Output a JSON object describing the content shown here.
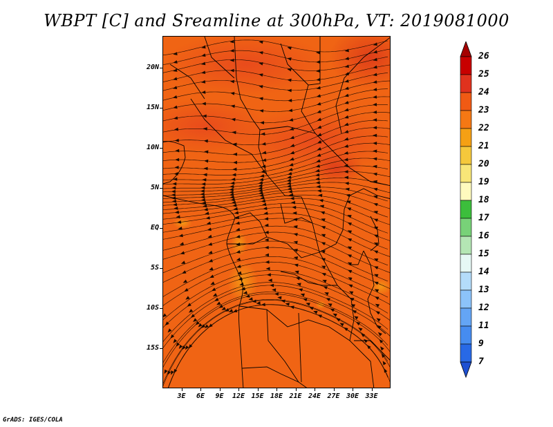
{
  "title": "WBPT [C] and Sreamline at 300hPa, VT: 2019081000",
  "footer": "GrADS: IGES/COLA",
  "map": {
    "lon_range": [
      0,
      36
    ],
    "lat_range": [
      -20,
      24
    ],
    "y_ticks": [
      "20N",
      "15N",
      "10N",
      "5N",
      "EQ",
      "5S",
      "10S",
      "15S"
    ],
    "x_ticks": [
      "3E",
      "6E",
      "9E",
      "12E",
      "15E",
      "18E",
      "21E",
      "24E",
      "27E",
      "30E",
      "33E"
    ],
    "dominant_color": "#f06414",
    "warm_color": "#e8461e",
    "cool_color": "#f59a14"
  },
  "colorbar": {
    "labels": [
      "26",
      "25",
      "24",
      "23",
      "22",
      "21",
      "20",
      "19",
      "18",
      "17",
      "16",
      "15",
      "14",
      "13",
      "12",
      "11",
      "9",
      "7"
    ],
    "colors": [
      "#a50000",
      "#c80000",
      "#e0321e",
      "#f05a14",
      "#f57814",
      "#f5a014",
      "#f5c83c",
      "#f8e678",
      "#fffabe",
      "#3cbe3c",
      "#78d278",
      "#b4e6b4",
      "#e6f8f5",
      "#b4dcfa",
      "#8cc3fa",
      "#64a5f5",
      "#468cf0",
      "#2869e6",
      "#1e50d2"
    ]
  }
}
